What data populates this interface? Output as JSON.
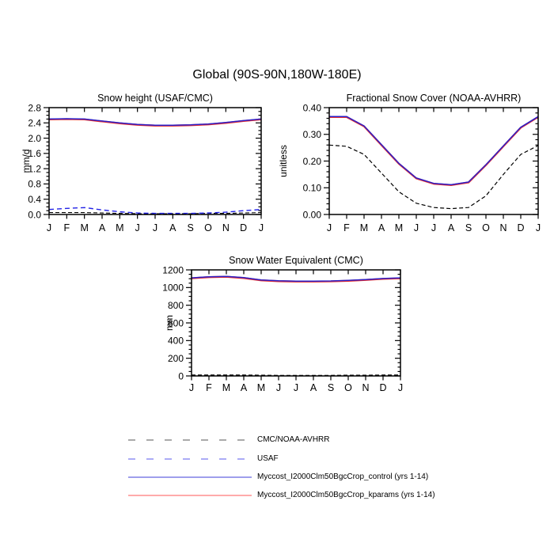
{
  "page_title": "Global (90S-90N,180W-180E)",
  "months": [
    "J",
    "F",
    "M",
    "A",
    "M",
    "J",
    "J",
    "A",
    "S",
    "O",
    "N",
    "D",
    "J"
  ],
  "colors": {
    "obs_dashed": "#000000",
    "usaf_dashed": "#2222e6",
    "model_control": "#2a1fc8",
    "model_kparams": "#e83030"
  },
  "chart_data": [
    {
      "id": "snow-height",
      "type": "line",
      "title": "Snow height (USAF/CMC)",
      "xlabel": "",
      "ylabel": "mm/d",
      "ylim": [
        0.0,
        2.8
      ],
      "ytick_step": 0.4,
      "yminor_step": 0.1,
      "ytick_decimals": 1,
      "x_labels": [
        "J",
        "F",
        "M",
        "A",
        "M",
        "J",
        "J",
        "A",
        "S",
        "O",
        "N",
        "D",
        "J"
      ],
      "grid": false,
      "series": [
        {
          "name": "CMC/NOAA-AVHRR",
          "style": "dashed",
          "dash": "5,3",
          "color": "#000000",
          "width": 1.1,
          "values": [
            0.05,
            0.05,
            0.05,
            0.04,
            0.03,
            0.02,
            0.02,
            0.02,
            0.02,
            0.03,
            0.03,
            0.04,
            0.05
          ]
        },
        {
          "name": "USAF",
          "style": "dashed",
          "dash": "6,4",
          "color": "#2222e6",
          "width": 1.4,
          "values": [
            0.13,
            0.16,
            0.18,
            0.12,
            0.07,
            0.04,
            0.03,
            0.03,
            0.03,
            0.04,
            0.06,
            0.1,
            0.13
          ]
        },
        {
          "name": "Myccost_I2000Clm50BgcCrop_kparams (yrs 1-14)",
          "style": "solid",
          "color": "#e83030",
          "width": 2.3,
          "values": [
            2.49,
            2.5,
            2.49,
            2.44,
            2.39,
            2.35,
            2.33,
            2.33,
            2.34,
            2.36,
            2.4,
            2.45,
            2.49
          ]
        },
        {
          "name": "Myccost_I2000Clm50BgcCrop_control (yrs 1-14)",
          "style": "solid",
          "color": "#2a1fc8",
          "width": 1.5,
          "values": [
            2.49,
            2.5,
            2.49,
            2.44,
            2.39,
            2.35,
            2.33,
            2.33,
            2.34,
            2.36,
            2.4,
            2.45,
            2.49
          ]
        }
      ]
    },
    {
      "id": "fractional-snow-cover",
      "type": "line",
      "title": "Fractional Snow Cover (NOAA-AVHRR)",
      "xlabel": "",
      "ylabel": "unitless",
      "ylim": [
        0.0,
        0.4
      ],
      "ytick_step": 0.1,
      "yminor_step": 0.02,
      "ytick_decimals": 2,
      "x_labels": [
        "J",
        "F",
        "M",
        "A",
        "M",
        "J",
        "J",
        "A",
        "S",
        "O",
        "N",
        "D",
        "J"
      ],
      "grid": false,
      "series": [
        {
          "name": "CMC/NOAA-AVHRR",
          "style": "dashed",
          "dash": "5,3",
          "color": "#000000",
          "width": 1.2,
          "values": [
            0.26,
            0.255,
            0.225,
            0.155,
            0.085,
            0.042,
            0.026,
            0.022,
            0.026,
            0.07,
            0.15,
            0.225,
            0.258
          ]
        },
        {
          "name": "Myccost_I2000Clm50BgcCrop_kparams (yrs 1-14)",
          "style": "solid",
          "color": "#e83030",
          "width": 2.3,
          "values": [
            0.365,
            0.365,
            0.33,
            0.26,
            0.19,
            0.135,
            0.115,
            0.11,
            0.12,
            0.185,
            0.255,
            0.325,
            0.365
          ]
        },
        {
          "name": "Myccost_I2000Clm50BgcCrop_control (yrs 1-14)",
          "style": "solid",
          "color": "#2a1fc8",
          "width": 1.5,
          "values": [
            0.365,
            0.365,
            0.33,
            0.26,
            0.19,
            0.135,
            0.115,
            0.11,
            0.12,
            0.185,
            0.255,
            0.325,
            0.365
          ]
        }
      ]
    },
    {
      "id": "snow-water-equivalent",
      "type": "line",
      "title": "Snow Water Equivalent (CMC)",
      "xlabel": "",
      "ylabel": "mm",
      "ylim": [
        0,
        1200
      ],
      "ytick_step": 200,
      "yminor_step": 50,
      "ytick_decimals": 0,
      "x_labels": [
        "J",
        "F",
        "M",
        "A",
        "M",
        "J",
        "J",
        "A",
        "S",
        "O",
        "N",
        "D",
        "J"
      ],
      "grid": false,
      "series": [
        {
          "name": "CMC/NOAA-AVHRR",
          "style": "dashed",
          "dash": "5,3",
          "color": "#000000",
          "width": 1.2,
          "values": [
            10,
            10,
            10,
            10,
            8,
            6,
            6,
            6,
            6,
            8,
            8,
            10,
            10
          ]
        },
        {
          "name": "Myccost_I2000Clm50BgcCrop_kparams (yrs 1-14)",
          "style": "solid",
          "color": "#e83030",
          "width": 2.3,
          "values": [
            1105,
            1118,
            1122,
            1108,
            1082,
            1072,
            1068,
            1068,
            1070,
            1076,
            1086,
            1098,
            1105
          ]
        },
        {
          "name": "Myccost_I2000Clm50BgcCrop_control (yrs 1-14)",
          "style": "solid",
          "color": "#2a1fc8",
          "width": 1.5,
          "values": [
            1105,
            1118,
            1122,
            1108,
            1082,
            1072,
            1068,
            1068,
            1070,
            1076,
            1086,
            1098,
            1105
          ]
        }
      ]
    }
  ],
  "legend": {
    "items": [
      {
        "label": "CMC/NOAA-AVHRR",
        "style": "dashed",
        "color": "#787878"
      },
      {
        "label": "USAF",
        "style": "dashed",
        "color": "#7b7bf0"
      },
      {
        "label": "Myccost_I2000Clm50BgcCrop_control (yrs 1-14)",
        "style": "solid",
        "color": "#6565e0"
      },
      {
        "label": "Myccost_I2000Clm50BgcCrop_kparams (yrs 1-14)",
        "style": "solid",
        "color": "#ff8f8f"
      }
    ]
  }
}
